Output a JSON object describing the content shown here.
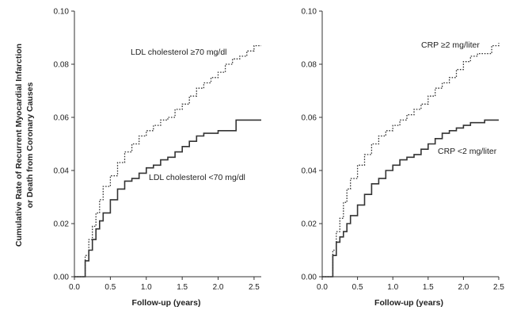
{
  "chart_data": [
    {
      "type": "line",
      "ylabel_lines": [
        "Cumulative Rate of Recurrent Myocardial Infarction",
        "or Death from Coronary Causes"
      ],
      "xlabel": "Follow-up (years)",
      "xlim": [
        0,
        2.6
      ],
      "ylim": [
        0,
        0.1
      ],
      "xticks": [
        "0.0",
        "0.5",
        "1.0",
        "1.5",
        "2.0",
        "2.5"
      ],
      "yticks": [
        "0.00",
        "0.02",
        "0.04",
        "0.06",
        "0.08",
        "0.10"
      ],
      "series": [
        {
          "name": "LDL cholesterol ≥70 mg/dl",
          "style": "dotted",
          "x": [
            0.0,
            0.1,
            0.15,
            0.2,
            0.25,
            0.3,
            0.35,
            0.4,
            0.5,
            0.6,
            0.7,
            0.8,
            0.9,
            1.0,
            1.1,
            1.2,
            1.3,
            1.4,
            1.5,
            1.6,
            1.7,
            1.8,
            1.9,
            2.0,
            2.1,
            2.2,
            2.3,
            2.4,
            2.5,
            2.6
          ],
          "y": [
            0.0,
            0.0,
            0.008,
            0.014,
            0.019,
            0.024,
            0.029,
            0.034,
            0.038,
            0.043,
            0.047,
            0.05,
            0.053,
            0.055,
            0.057,
            0.059,
            0.06,
            0.063,
            0.065,
            0.068,
            0.071,
            0.073,
            0.075,
            0.077,
            0.08,
            0.082,
            0.083,
            0.085,
            0.087,
            0.087
          ]
        },
        {
          "name": "LDL cholesterol <70 mg/dl",
          "style": "solid",
          "x": [
            0.0,
            0.1,
            0.15,
            0.2,
            0.25,
            0.3,
            0.35,
            0.4,
            0.5,
            0.6,
            0.7,
            0.8,
            0.9,
            1.0,
            1.1,
            1.2,
            1.3,
            1.4,
            1.5,
            1.6,
            1.7,
            1.8,
            1.9,
            2.0,
            2.1,
            2.2,
            2.25,
            2.4,
            2.5,
            2.6
          ],
          "y": [
            0.0,
            0.0,
            0.006,
            0.01,
            0.014,
            0.018,
            0.021,
            0.024,
            0.029,
            0.033,
            0.036,
            0.037,
            0.039,
            0.041,
            0.042,
            0.044,
            0.045,
            0.047,
            0.049,
            0.051,
            0.053,
            0.054,
            0.054,
            0.055,
            0.055,
            0.055,
            0.059,
            0.059,
            0.059,
            0.059
          ]
        }
      ],
      "annotations": [
        {
          "text": "LDL cholesterol ≥70 mg/dl",
          "series": 0
        },
        {
          "text": "LDL cholesterol <70 mg/dl",
          "series": 1
        }
      ]
    },
    {
      "type": "line",
      "xlabel": "Follow-up (years)",
      "xlim": [
        0,
        2.5
      ],
      "ylim": [
        0,
        0.1
      ],
      "xticks": [
        "0.0",
        "0.5",
        "1.0",
        "1.5",
        "2.0",
        "2.5"
      ],
      "yticks": [
        "0.00",
        "0.02",
        "0.04",
        "0.06",
        "0.08",
        "0.10"
      ],
      "series": [
        {
          "name": "CRP ≥2 mg/liter",
          "style": "dotted",
          "x": [
            0.0,
            0.1,
            0.15,
            0.2,
            0.25,
            0.3,
            0.35,
            0.4,
            0.5,
            0.6,
            0.7,
            0.8,
            0.9,
            1.0,
            1.1,
            1.2,
            1.3,
            1.4,
            1.5,
            1.6,
            1.7,
            1.8,
            1.9,
            2.0,
            2.1,
            2.2,
            2.3,
            2.4,
            2.5
          ],
          "y": [
            0.0,
            0.0,
            0.01,
            0.017,
            0.022,
            0.028,
            0.033,
            0.037,
            0.042,
            0.046,
            0.05,
            0.053,
            0.055,
            0.057,
            0.059,
            0.061,
            0.063,
            0.065,
            0.068,
            0.071,
            0.073,
            0.075,
            0.078,
            0.081,
            0.083,
            0.084,
            0.084,
            0.087,
            0.088
          ]
        },
        {
          "name": "CRP <2 mg/liter",
          "style": "solid",
          "x": [
            0.0,
            0.1,
            0.15,
            0.2,
            0.25,
            0.3,
            0.35,
            0.4,
            0.5,
            0.6,
            0.7,
            0.8,
            0.9,
            1.0,
            1.1,
            1.2,
            1.3,
            1.4,
            1.5,
            1.6,
            1.7,
            1.8,
            1.9,
            2.0,
            2.1,
            2.2,
            2.3,
            2.4,
            2.5
          ],
          "y": [
            0.0,
            0.0,
            0.008,
            0.013,
            0.015,
            0.017,
            0.02,
            0.023,
            0.027,
            0.031,
            0.035,
            0.037,
            0.04,
            0.042,
            0.044,
            0.045,
            0.046,
            0.048,
            0.05,
            0.052,
            0.054,
            0.055,
            0.056,
            0.057,
            0.058,
            0.058,
            0.059,
            0.059,
            0.059
          ]
        }
      ],
      "annotations": [
        {
          "text": "CRP ≥2 mg/liter",
          "series": 0
        },
        {
          "text": "CRP <2 mg/liter",
          "series": 1
        }
      ]
    }
  ]
}
